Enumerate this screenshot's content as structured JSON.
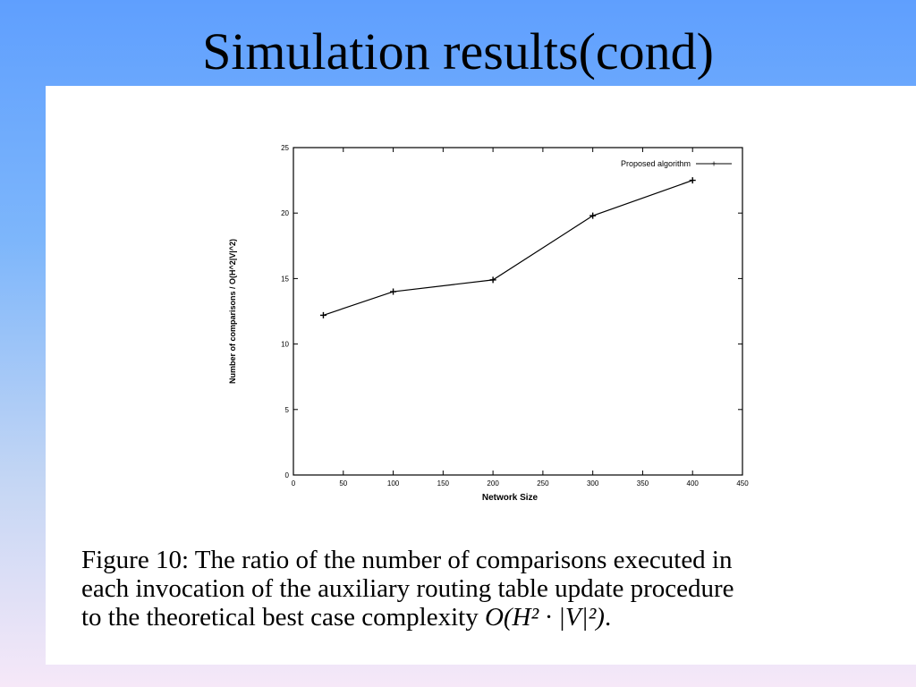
{
  "slide": {
    "title": "Simulation results(cond)"
  },
  "caption": {
    "line1": "Figure 10: The ratio of the number of comparisons executed in",
    "line2": "each invocation of the auxiliary routing table update procedure",
    "line3_text": "to the theoretical best case complexity ",
    "line3_math": "O(H² · |V|²)",
    "line3_end": "."
  },
  "chart_data": {
    "type": "line",
    "xlabel": "Network Size",
    "ylabel": "Number of comparisons / O(H^2|V|^2)",
    "xlim": [
      0,
      450
    ],
    "ylim": [
      0,
      25
    ],
    "xticks": [
      0,
      50,
      100,
      150,
      200,
      250,
      300,
      350,
      400,
      450
    ],
    "yticks": [
      0,
      5,
      10,
      15,
      20,
      25
    ],
    "legend_position": "top-right",
    "grid": false,
    "series": [
      {
        "name": "Proposed algorithm",
        "x": [
          30,
          100,
          200,
          300,
          400
        ],
        "y": [
          12.2,
          14,
          14.9,
          19.8,
          22.5
        ],
        "color": "#000000"
      }
    ]
  }
}
